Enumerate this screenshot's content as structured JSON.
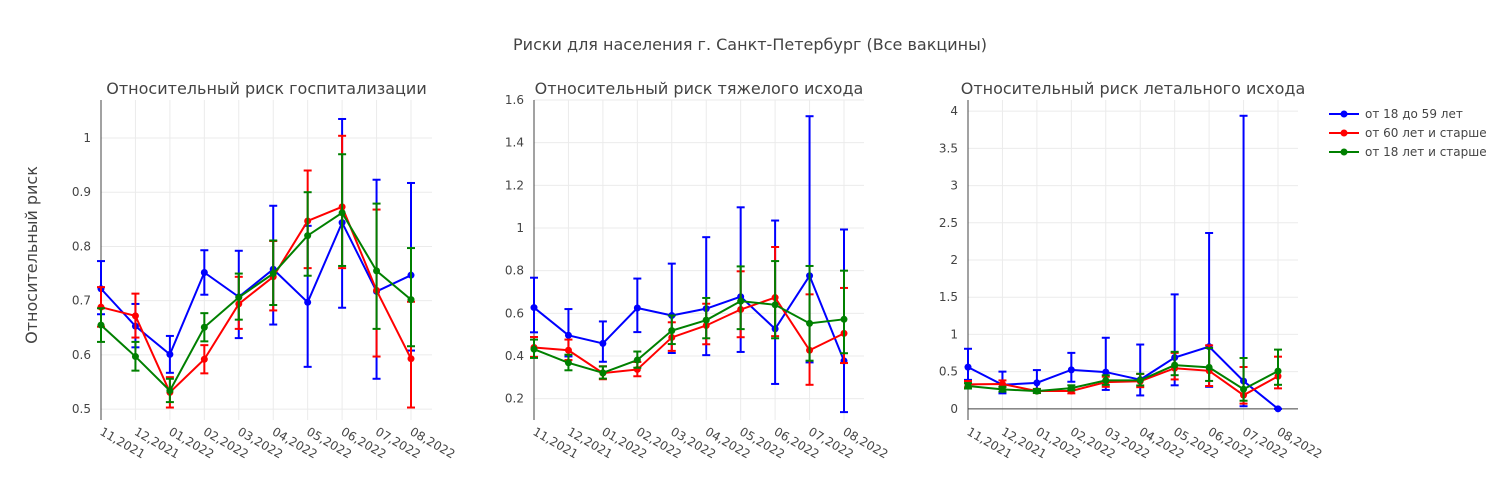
{
  "title": "Риски для населения г. Санкт-Петербург (Все вакцины)",
  "ylabel": "Относительный риск",
  "chart_data": [
    {
      "type": "line",
      "title": "Относительный риск госпитализации",
      "categories": [
        "11,2021",
        "12,2021",
        "01,2022",
        "02,2022",
        "03,2022",
        "04,2022",
        "05,2022",
        "06,2022",
        "07,2022",
        "08,2022"
      ],
      "ylim": [
        0.48,
        1.07
      ],
      "yticks": [
        0.5,
        0.6,
        0.7,
        0.8,
        0.9,
        1
      ],
      "ytick_labels": [
        "0.5",
        "0.6",
        "0.7",
        "0.8",
        "0.9",
        "1"
      ],
      "series": [
        {
          "name": "от 18 до 59 лет",
          "color": "#0000ff",
          "values": [
            0.722,
            0.653,
            0.601,
            0.752,
            0.707,
            0.758,
            0.697,
            0.844,
            0.717,
            0.747
          ],
          "lower": [
            0.675,
            0.614,
            0.567,
            0.711,
            0.631,
            0.656,
            0.578,
            0.687,
            0.556,
            0.608
          ],
          "upper": [
            0.773,
            0.694,
            0.635,
            0.793,
            0.792,
            0.875,
            0.838,
            1.035,
            0.923,
            0.917
          ]
        },
        {
          "name": "от 60 лет и старше",
          "color": "#ff0000",
          "values": [
            0.688,
            0.672,
            0.531,
            0.592,
            0.694,
            0.744,
            0.847,
            0.873,
            0.719,
            0.593
          ],
          "lower": [
            0.652,
            0.632,
            0.503,
            0.566,
            0.648,
            0.682,
            0.76,
            0.76,
            0.597,
            0.503
          ],
          "upper": [
            0.725,
            0.713,
            0.559,
            0.618,
            0.744,
            0.81,
            0.94,
            1.004,
            0.868,
            0.698
          ]
        },
        {
          "name": "от 18 лет и старше",
          "color": "#008000",
          "values": [
            0.655,
            0.597,
            0.534,
            0.651,
            0.706,
            0.75,
            0.82,
            0.862,
            0.755,
            0.702
          ],
          "lower": [
            0.624,
            0.571,
            0.513,
            0.625,
            0.665,
            0.692,
            0.746,
            0.764,
            0.648,
            0.616
          ],
          "upper": [
            0.686,
            0.624,
            0.556,
            0.677,
            0.75,
            0.811,
            0.9,
            0.97,
            0.879,
            0.797
          ]
        }
      ]
    },
    {
      "type": "line",
      "title": "Относительный риск тяжелого исхода",
      "categories": [
        "11,2021",
        "12,2021",
        "01,2022",
        "02,2022",
        "03,2022",
        "04,2022",
        "05,2022",
        "06,2022",
        "07,2022",
        "08,2022"
      ],
      "ylim": [
        0.1,
        1.6
      ],
      "yticks": [
        0.2,
        0.4,
        0.6,
        0.8,
        1,
        1.2,
        1.4,
        1.6
      ],
      "ytick_labels": [
        "0.2",
        "0.4",
        "0.6",
        "0.8",
        "1",
        "1.2",
        "1.4",
        "1.6"
      ],
      "series": [
        {
          "name": "от 18 до 59 лет",
          "color": "#0000ff",
          "values": [
            0.627,
            0.497,
            0.459,
            0.625,
            0.59,
            0.622,
            0.678,
            0.527,
            0.776,
            0.377
          ],
          "lower": [
            0.511,
            0.398,
            0.373,
            0.512,
            0.414,
            0.404,
            0.419,
            0.269,
            0.37,
            0.137
          ],
          "upper": [
            0.767,
            0.62,
            0.562,
            0.763,
            0.833,
            0.957,
            1.097,
            1.035,
            1.524,
            0.993
          ]
        },
        {
          "name": "от 60 лет и старше",
          "color": "#ff0000",
          "values": [
            0.44,
            0.427,
            0.32,
            0.337,
            0.487,
            0.543,
            0.618,
            0.674,
            0.427,
            0.506
          ],
          "lower": [
            0.396,
            0.381,
            0.291,
            0.305,
            0.424,
            0.455,
            0.488,
            0.493,
            0.265,
            0.367
          ],
          "upper": [
            0.489,
            0.477,
            0.352,
            0.372,
            0.558,
            0.645,
            0.797,
            0.911,
            0.689,
            0.719
          ]
        },
        {
          "name": "от 18 лет и старше",
          "color": "#008000",
          "values": [
            0.432,
            0.368,
            0.321,
            0.381,
            0.519,
            0.568,
            0.657,
            0.64,
            0.553,
            0.572
          ],
          "lower": [
            0.391,
            0.333,
            0.294,
            0.345,
            0.456,
            0.483,
            0.526,
            0.483,
            0.378,
            0.413
          ],
          "upper": [
            0.477,
            0.406,
            0.351,
            0.421,
            0.59,
            0.672,
            0.82,
            0.845,
            0.822,
            0.8
          ]
        }
      ]
    },
    {
      "type": "line",
      "title": "Относительный риск летального исхода",
      "categories": [
        "11,2021",
        "12,2021",
        "01,2022",
        "02,2022",
        "03,2022",
        "04,2022",
        "05,2022",
        "06,2022",
        "07,2022",
        "08,2022"
      ],
      "ylim": [
        -0.15,
        4.15
      ],
      "yticks": [
        0,
        0.5,
        1,
        1.5,
        2,
        2.5,
        3,
        3.5,
        4
      ],
      "ytick_labels": [
        "0",
        "0.5",
        "1",
        "1.5",
        "2",
        "2.5",
        "3",
        "3.5",
        "4"
      ],
      "series": [
        {
          "name": "от 18 до 59 лет",
          "color": "#0000ff",
          "values": [
            0.561,
            0.323,
            0.349,
            0.524,
            0.494,
            0.392,
            0.69,
            0.836,
            0.373,
            0.0
          ],
          "lower": [
            0.389,
            0.208,
            0.234,
            0.364,
            0.254,
            0.18,
            0.316,
            0.296,
            0.035,
            0.0
          ],
          "upper": [
            0.807,
            0.5,
            0.521,
            0.752,
            0.955,
            0.864,
            1.538,
            2.363,
            3.938,
            0.0
          ]
        },
        {
          "name": "от 60 лет и старше",
          "color": "#ff0000",
          "values": [
            0.329,
            0.333,
            0.239,
            0.24,
            0.359,
            0.371,
            0.546,
            0.511,
            0.184,
            0.438
          ],
          "lower": [
            0.289,
            0.292,
            0.212,
            0.208,
            0.296,
            0.291,
            0.395,
            0.307,
            0.07,
            0.275
          ],
          "upper": [
            0.374,
            0.382,
            0.268,
            0.275,
            0.432,
            0.469,
            0.752,
            0.853,
            0.562,
            0.701
          ]
        },
        {
          "name": "от 18 лет и старше",
          "color": "#008000",
          "values": [
            0.307,
            0.262,
            0.238,
            0.279,
            0.382,
            0.384,
            0.587,
            0.557,
            0.264,
            0.507
          ],
          "lower": [
            0.273,
            0.232,
            0.213,
            0.248,
            0.322,
            0.314,
            0.452,
            0.375,
            0.109,
            0.323
          ],
          "upper": [
            0.346,
            0.297,
            0.266,
            0.316,
            0.451,
            0.471,
            0.766,
            0.817,
            0.683,
            0.796
          ]
        }
      ]
    }
  ],
  "legend": [
    {
      "name": "от 18 до 59 лет",
      "color": "#0000ff"
    },
    {
      "name": "от 60 лет и старше",
      "color": "#ff0000"
    },
    {
      "name": "от 18 лет и старше",
      "color": "#008000"
    }
  ]
}
